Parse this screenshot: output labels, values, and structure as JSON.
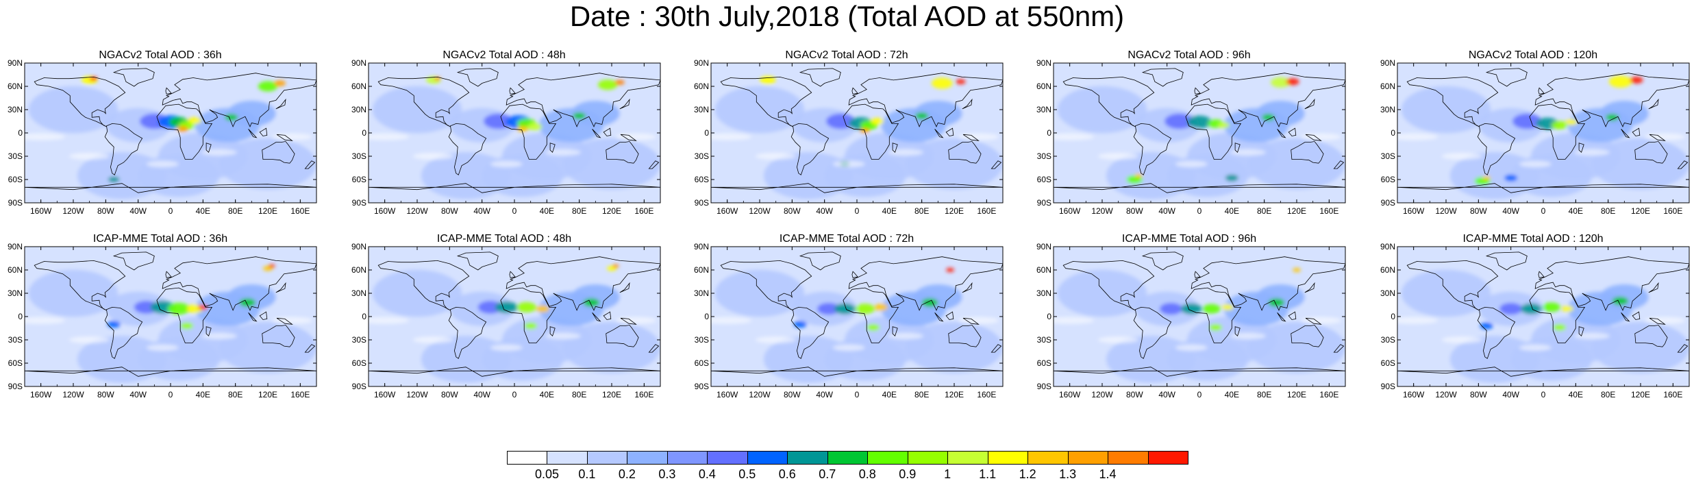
{
  "title": "Date : 30th July,2018 (Total AOD at 550nm)",
  "panels": [
    {
      "title": "NGACv2 Total AOD : 36h"
    },
    {
      "title": "NGACv2 Total AOD : 48h"
    },
    {
      "title": "NGACv2 Total AOD : 72h"
    },
    {
      "title": "NGACv2 Total AOD : 96h"
    },
    {
      "title": "NGACv2 Total AOD : 120h"
    },
    {
      "title": "ICAP-MME Total AOD : 36h"
    },
    {
      "title": "ICAP-MME Total AOD : 48h"
    },
    {
      "title": "ICAP-MME Total AOD : 72h"
    },
    {
      "title": "ICAP-MME Total AOD : 96h"
    },
    {
      "title": "ICAP-MME Total AOD : 120h"
    }
  ],
  "lat_ticks": [
    "90N",
    "60N",
    "30N",
    "0",
    "30S",
    "60S",
    "90S"
  ],
  "lon_ticks": [
    "160W",
    "120W",
    "80W",
    "40W",
    "0",
    "40E",
    "80E",
    "120E",
    "160E"
  ],
  "colorbar": {
    "colors": [
      "#ffffff",
      "#d6e2ff",
      "#b5c9ff",
      "#8eb2ff",
      "#7f96ff",
      "#6370ff",
      "#0063ff",
      "#009696",
      "#00c633",
      "#63ff00",
      "#96ff00",
      "#c6ff33",
      "#ffff00",
      "#ffc600",
      "#ffa000",
      "#ff7c00",
      "#ff1900"
    ],
    "labels": [
      "0.05",
      "0.1",
      "0.2",
      "0.3",
      "0.4",
      "0.5",
      "0.6",
      "0.7",
      "0.8",
      "0.9",
      "1",
      "1.1",
      "1.2",
      "1.3",
      "1.4"
    ]
  }
}
